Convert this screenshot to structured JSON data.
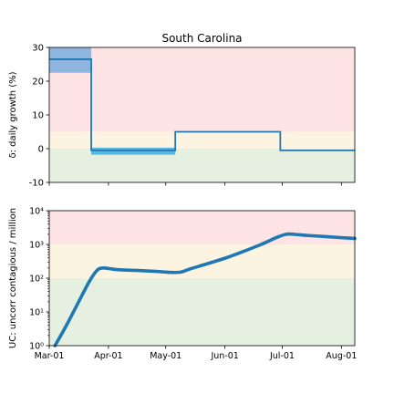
{
  "chart_data": [
    {
      "type": "line",
      "title": "South Carolina",
      "ylabel": "δ: daily growth (%)",
      "xlabel": "",
      "ylim": [
        -10,
        30
      ],
      "yticks": [
        -10,
        0,
        10,
        20,
        30
      ],
      "xlim": [
        "2020-03-01",
        "2020-08-08"
      ],
      "bands": [
        {
          "from": -10,
          "to": 0,
          "color": "#e6f0e1"
        },
        {
          "from": 0,
          "to": 5,
          "color": "#fdf3e1"
        },
        {
          "from": 5,
          "to": 30,
          "color": "#fde3e4"
        }
      ],
      "series": [
        {
          "color": "#1f77b4",
          "points": [
            [
              "2020-03-01",
              26.5
            ],
            [
              "2020-03-23",
              26.5
            ],
            [
              "2020-03-23",
              -0.5
            ],
            [
              "2020-05-06",
              -0.5
            ],
            [
              "2020-05-06",
              5.0
            ],
            [
              "2020-06-30",
              5.0
            ],
            [
              "2020-06-30",
              -0.5
            ],
            [
              "2020-08-08",
              -0.5
            ]
          ]
        }
      ],
      "uncertainty_boxes": [
        {
          "x0": "2020-03-01",
          "x1": "2020-03-23",
          "y0": 22.5,
          "y1": 30,
          "color": "#8eb6df"
        },
        {
          "x0": "2020-03-23",
          "x1": "2020-05-06",
          "y0": -1.8,
          "y1": 0.3,
          "color": "#5bb8e0"
        }
      ]
    },
    {
      "type": "line",
      "title": "",
      "ylabel": "UC: uncorr contagious / million",
      "xlabel": "",
      "yscale": "log",
      "ylim": [
        1,
        10000
      ],
      "ytick_labels": [
        "10⁰",
        "10¹",
        "10²",
        "10³",
        "10⁴"
      ],
      "ytick_values": [
        1,
        10,
        100,
        1000,
        10000
      ],
      "xlim": [
        "2020-03-01",
        "2020-08-08"
      ],
      "x_tick_labels": [
        "Mar-01",
        "Apr-01",
        "May-01",
        "Jun-01",
        "Jul-01",
        "Aug-01"
      ],
      "x_tick_dates": [
        "2020-03-01",
        "2020-04-01",
        "2020-05-01",
        "2020-06-01",
        "2020-07-01",
        "2020-08-01"
      ],
      "bands": [
        {
          "from": 1,
          "to": 100,
          "color": "#e6f0e1"
        },
        {
          "from": 100,
          "to": 1000,
          "color": "#fdf3e1"
        },
        {
          "from": 1000,
          "to": 10000,
          "color": "#fde3e4"
        }
      ],
      "series": [
        {
          "color": "#1f77b4",
          "points": [
            [
              "2020-03-04",
              1
            ],
            [
              "2020-03-10",
              4
            ],
            [
              "2020-03-16",
              18
            ],
            [
              "2020-03-22",
              80
            ],
            [
              "2020-03-26",
              170
            ],
            [
              "2020-03-29",
              200
            ],
            [
              "2020-04-02",
              190
            ],
            [
              "2020-04-06",
              178
            ],
            [
              "2020-04-15",
              170
            ],
            [
              "2020-04-25",
              160
            ],
            [
              "2020-05-04",
              148
            ],
            [
              "2020-05-09",
              152
            ],
            [
              "2020-05-14",
              190
            ],
            [
              "2020-05-22",
              260
            ],
            [
              "2020-06-01",
              390
            ],
            [
              "2020-06-10",
              600
            ],
            [
              "2020-06-20",
              1000
            ],
            [
              "2020-06-28",
              1600
            ],
            [
              "2020-07-03",
              2000
            ],
            [
              "2020-07-07",
              2000
            ],
            [
              "2020-07-14",
              1850
            ],
            [
              "2020-07-24",
              1700
            ],
            [
              "2020-08-08",
              1500
            ]
          ]
        }
      ]
    }
  ]
}
